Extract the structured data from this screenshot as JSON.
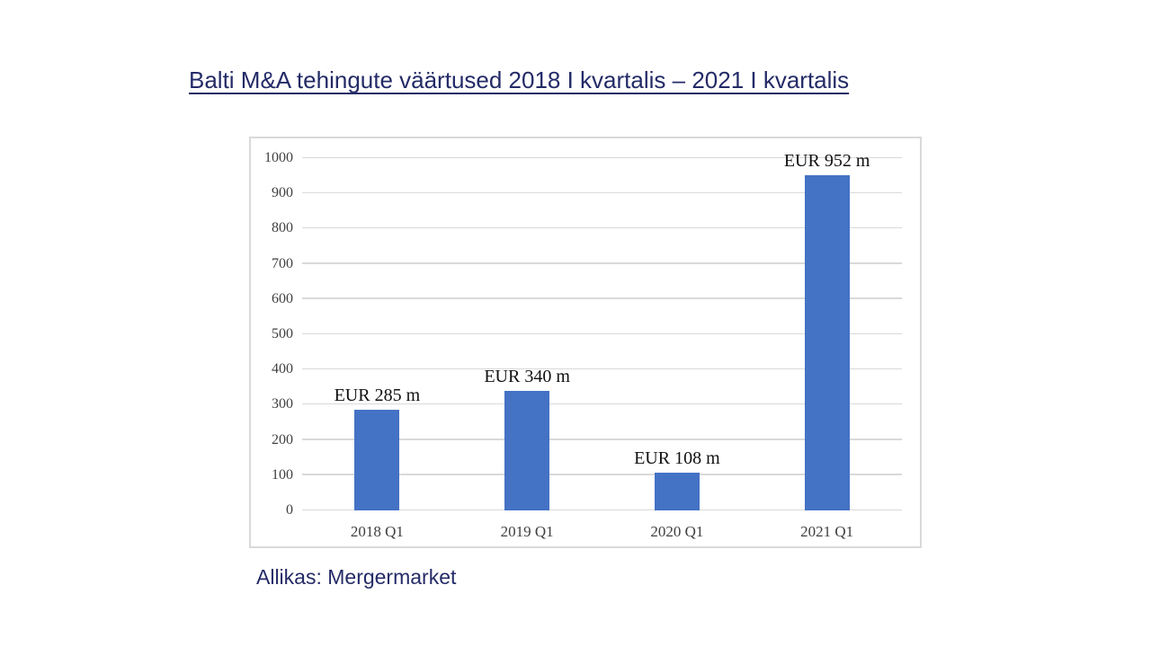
{
  "page": {
    "title": "Balti M&A tehingute väärtused 2018 I kvartalis – 2021 I kvartalis",
    "source": "Allikas: Mergermarket"
  },
  "chart_data": {
    "type": "bar",
    "title": "Balti M&A tehingute väärtused 2018 I kvartalis – 2021 I kvartalis",
    "categories": [
      "2018 Q1",
      "2019 Q1",
      "2020 Q1",
      "2021 Q1"
    ],
    "values": [
      285,
      340,
      108,
      952
    ],
    "bar_labels": [
      "EUR 285 m",
      "EUR 340 m",
      "EUR 108 m",
      "EUR 952 m"
    ],
    "xlabel": "",
    "ylabel": "",
    "ylim": [
      0,
      1000
    ],
    "ytick_step": 100,
    "yticks": [
      0,
      100,
      200,
      300,
      400,
      500,
      600,
      700,
      800,
      900,
      1000
    ],
    "grid": true,
    "legend": "none",
    "colors": {
      "bar": "#4472C4",
      "gridline": "#D9D9D9",
      "axis_text": "#3F3F3F",
      "data_label_text": "#111111",
      "title_text": "#242B67",
      "frame_border": "#D9D9D9"
    }
  }
}
